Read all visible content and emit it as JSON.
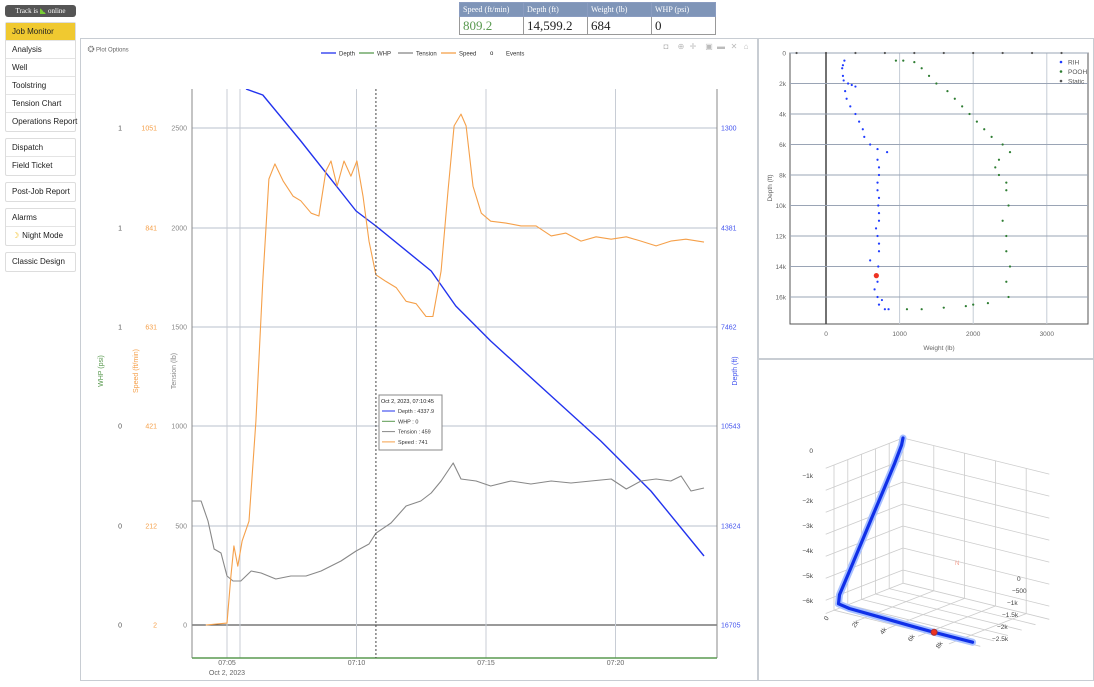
{
  "status": {
    "pre": "Track is",
    "post": "online",
    "icon": "signal-icon"
  },
  "sidebar": {
    "groups": [
      [
        {
          "label": "Job Monitor",
          "active": true
        },
        {
          "label": "Analysis"
        },
        {
          "label": "Well"
        },
        {
          "label": "Toolstring"
        },
        {
          "label": "Tension Chart"
        },
        {
          "label": "Operations Report"
        }
      ],
      [
        {
          "label": "Dispatch"
        },
        {
          "label": "Field Ticket"
        }
      ],
      [
        {
          "label": "Post-Job Report"
        }
      ],
      [
        {
          "label": "Alarms"
        },
        {
          "label": "Night Mode",
          "icon": "moon-icon"
        }
      ],
      [
        {
          "label": "Classic Design"
        }
      ]
    ]
  },
  "readout": {
    "headers": [
      "Speed (ft/min)",
      "Depth (ft)",
      "Weight (lb)",
      "WHP (psi)"
    ],
    "values": [
      "809.2",
      "14,599.2",
      "684",
      "0"
    ]
  },
  "main_chart": {
    "plot_options": "Plot Options",
    "toolbar": [
      "camera-icon",
      "zoom-icon",
      "pan-icon",
      "zoom-in-icon",
      "zoom-out-icon",
      "autoscale-icon",
      "home-icon"
    ],
    "tooltip": {
      "title": "Oct 2, 2023, 07:10:45",
      "rows": [
        {
          "label": "Depth : 4337.9",
          "color": "#2233ee"
        },
        {
          "label": "WHP : 0",
          "color": "#5a9a50"
        },
        {
          "label": "Tension : 459",
          "color": "#888888"
        },
        {
          "label": "Speed : 741",
          "color": "#f5a04a"
        }
      ]
    }
  },
  "colors": {
    "depth": "#2233ee",
    "whp": "#5a9a50",
    "tension": "#888888",
    "speed": "#f5a04a",
    "rih": "#1f3bff",
    "pooh": "#2e7d32",
    "static": "#555555",
    "current": "#ee3322",
    "accent": "#f0c930"
  },
  "chart_data": [
    {
      "type": "line",
      "legend": [
        {
          "name": "Depth",
          "color": "#2233ee"
        },
        {
          "name": "WHP",
          "color": "#5a9a50"
        },
        {
          "name": "Tension",
          "color": "#888888"
        },
        {
          "name": "Speed",
          "color": "#f5a04a"
        },
        {
          "name": "Events",
          "marker": "o"
        }
      ],
      "legend_position": "top-center",
      "x_ticks": [
        "07:05",
        "07:10",
        "07:15",
        "07:20"
      ],
      "x_date_label": "Oct 2, 2023",
      "x_range": [
        "07:03:39",
        "07:23:55"
      ],
      "hover_time": "07:10:45",
      "axes": {
        "whp": {
          "title": "WHP (psi)",
          "ticks": [
            "0",
            "0",
            "0",
            "1",
            "1",
            "1"
          ]
        },
        "speed": {
          "title": "Speed (ft/min)",
          "ticks": [
            "2",
            "212",
            "421",
            "631",
            "841",
            "1051"
          ]
        },
        "tension": {
          "title": "Tension (lb)",
          "ticks": [
            "0",
            "500",
            "1000",
            "1500",
            "2000",
            "2500"
          ]
        },
        "depth": {
          "title": "Depth (ft)",
          "ticks": [
            "16705",
            "13624",
            "10543",
            "7462",
            "4381",
            "1300"
          ],
          "reversed": true
        }
      },
      "series": [
        {
          "name": "Depth",
          "axis": "depth",
          "points": [
            [
              "07:05:44",
              91
            ],
            [
              "07:06:23",
              277
            ],
            [
              "07:07:51",
              1703
            ],
            [
              "07:09:59",
              3873
            ],
            [
              "07:10:45",
              4338
            ],
            [
              "07:12:53",
              5733
            ],
            [
              "07:13:50",
              6818
            ],
            [
              "07:15:11",
              7903
            ],
            [
              "07:17:31",
              9608
            ],
            [
              "07:19:26",
              11003
            ],
            [
              "07:21:22",
              12553
            ],
            [
              "07:23:25",
              14568
            ]
          ]
        },
        {
          "name": "WHP",
          "axis": "whp",
          "points": [
            [
              "07:03:39",
              0
            ],
            [
              "07:23:55",
              0
            ]
          ]
        },
        {
          "name": "Tension",
          "axis": "tension",
          "points": [
            [
              "07:03:39",
              620
            ],
            [
              "07:04:00",
              620
            ],
            [
              "07:04:16",
              520
            ],
            [
              "07:04:30",
              380
            ],
            [
              "07:04:46",
              360
            ],
            [
              "07:05:00",
              245
            ],
            [
              "07:05:14",
              220
            ],
            [
              "07:05:32",
              220
            ],
            [
              "07:05:56",
              270
            ],
            [
              "07:06:19",
              260
            ],
            [
              "07:06:53",
              230
            ],
            [
              "07:07:28",
              245
            ],
            [
              "07:08:03",
              245
            ],
            [
              "07:08:38",
              270
            ],
            [
              "07:09:24",
              320
            ],
            [
              "07:09:59",
              370
            ],
            [
              "07:10:29",
              405
            ],
            [
              "07:10:45",
              459
            ],
            [
              "07:11:20",
              510
            ],
            [
              "07:11:55",
              595
            ],
            [
              "07:12:29",
              620
            ],
            [
              "07:12:53",
              660
            ],
            [
              "07:13:16",
              720
            ],
            [
              "07:13:44",
              810
            ],
            [
              "07:14:02",
              730
            ],
            [
              "07:14:37",
              720
            ],
            [
              "07:15:11",
              695
            ],
            [
              "07:15:58",
              720
            ],
            [
              "07:16:44",
              705
            ],
            [
              "07:17:31",
              720
            ],
            [
              "07:18:17",
              710
            ],
            [
              "07:19:03",
              720
            ],
            [
              "07:19:50",
              730
            ],
            [
              "07:20:25",
              680
            ],
            [
              "07:20:59",
              720
            ],
            [
              "07:21:34",
              730
            ],
            [
              "07:22:08",
              720
            ],
            [
              "07:22:32",
              745
            ],
            [
              "07:22:55",
              670
            ],
            [
              "07:23:25",
              685
            ]
          ]
        },
        {
          "name": "Speed",
          "axis": "speed",
          "points": [
            [
              "07:04:11",
              2
            ],
            [
              "07:05:00",
              6
            ],
            [
              "07:05:09",
              105
            ],
            [
              "07:05:16",
              169
            ],
            [
              "07:05:25",
              126
            ],
            [
              "07:05:35",
              179
            ],
            [
              "07:05:51",
              221
            ],
            [
              "07:06:07",
              432
            ],
            [
              "07:06:23",
              728
            ],
            [
              "07:06:37",
              943
            ],
            [
              "07:06:51",
              975
            ],
            [
              "07:07:10",
              939
            ],
            [
              "07:07:33",
              907
            ],
            [
              "07:07:51",
              897
            ],
            [
              "07:08:15",
              871
            ],
            [
              "07:08:33",
              865
            ],
            [
              "07:08:49",
              960
            ],
            [
              "07:09:01",
              981
            ],
            [
              "07:09:15",
              928
            ],
            [
              "07:09:31",
              981
            ],
            [
              "07:09:47",
              949
            ],
            [
              "07:10:01",
              981
            ],
            [
              "07:10:15",
              907
            ],
            [
              "07:10:29",
              812
            ],
            [
              "07:10:45",
              741
            ],
            [
              "07:11:08",
              727
            ],
            [
              "07:11:32",
              714
            ],
            [
              "07:11:55",
              685
            ],
            [
              "07:12:18",
              680
            ],
            [
              "07:12:41",
              653
            ],
            [
              "07:12:57",
              653
            ],
            [
              "07:13:16",
              749
            ],
            [
              "07:13:32",
              918
            ],
            [
              "07:13:46",
              1055
            ],
            [
              "07:14:02",
              1080
            ],
            [
              "07:14:14",
              1055
            ],
            [
              "07:14:30",
              928
            ],
            [
              "07:14:49",
              871
            ],
            [
              "07:15:11",
              854
            ],
            [
              "07:15:46",
              850
            ],
            [
              "07:16:21",
              844
            ],
            [
              "07:16:56",
              844
            ],
            [
              "07:17:31",
              823
            ],
            [
              "07:18:05",
              829
            ],
            [
              "07:18:40",
              812
            ],
            [
              "07:19:15",
              821
            ],
            [
              "07:19:50",
              816
            ],
            [
              "07:20:25",
              821
            ],
            [
              "07:20:59",
              812
            ],
            [
              "07:21:34",
              802
            ],
            [
              "07:22:08",
              812
            ],
            [
              "07:22:43",
              816
            ],
            [
              "07:23:25",
              810
            ]
          ]
        }
      ]
    },
    {
      "type": "scatter",
      "xlabel": "Weight (lb)",
      "ylabel": "Depth (ft)",
      "xlim": [
        -500,
        3550
      ],
      "ylim": [
        17800,
        0
      ],
      "x_ticks": [
        "0",
        "1000",
        "2000",
        "3000"
      ],
      "y_ticks": [
        "0",
        "2k",
        "4k",
        "6k",
        "8k",
        "10k",
        "12k",
        "14k",
        "16k"
      ],
      "legend_position": "top-right",
      "current": {
        "weight": 684,
        "depth": 14599
      },
      "series": [
        {
          "name": "RIH",
          "color": "#1f3bff",
          "points": [
            [
              250,
              500
            ],
            [
              230,
              800
            ],
            [
              220,
              1000
            ],
            [
              230,
              1500
            ],
            [
              240,
              1800
            ],
            [
              300,
              2000
            ],
            [
              400,
              2200
            ],
            [
              350,
              2100
            ],
            [
              260,
              2500
            ],
            [
              280,
              3000
            ],
            [
              330,
              3500
            ],
            [
              400,
              4000
            ],
            [
              450,
              4500
            ],
            [
              500,
              5000
            ],
            [
              520,
              5500
            ],
            [
              600,
              6000
            ],
            [
              700,
              6300
            ],
            [
              830,
              6500
            ],
            [
              700,
              7000
            ],
            [
              720,
              7500
            ],
            [
              720,
              8000
            ],
            [
              700,
              8500
            ],
            [
              700,
              9000
            ],
            [
              720,
              9500
            ],
            [
              710,
              10000
            ],
            [
              720,
              10500
            ],
            [
              720,
              11000
            ],
            [
              680,
              11500
            ],
            [
              700,
              12000
            ],
            [
              720,
              12500
            ],
            [
              720,
              13000
            ],
            [
              600,
              13600
            ],
            [
              710,
              14000
            ],
            [
              700,
              15000
            ],
            [
              660,
              15500
            ],
            [
              700,
              16000
            ],
            [
              760,
              16200
            ],
            [
              720,
              16500
            ],
            [
              800,
              16800
            ],
            [
              850,
              16800
            ]
          ]
        },
        {
          "name": "POOH",
          "color": "#2e7d32",
          "points": [
            [
              950,
              500
            ],
            [
              1050,
              500
            ],
            [
              1200,
              600
            ],
            [
              1300,
              1000
            ],
            [
              1400,
              1500
            ],
            [
              1500,
              2000
            ],
            [
              1650,
              2500
            ],
            [
              1750,
              3000
            ],
            [
              1850,
              3500
            ],
            [
              1950,
              4000
            ],
            [
              2050,
              4500
            ],
            [
              2150,
              5000
            ],
            [
              2250,
              5500
            ],
            [
              2400,
              6000
            ],
            [
              2500,
              6500
            ],
            [
              2350,
              7000
            ],
            [
              2300,
              7500
            ],
            [
              2350,
              8000
            ],
            [
              2450,
              8500
            ],
            [
              2450,
              9000
            ],
            [
              2480,
              10000
            ],
            [
              2400,
              11000
            ],
            [
              2450,
              12000
            ],
            [
              2450,
              13000
            ],
            [
              2500,
              14000
            ],
            [
              2450,
              15000
            ],
            [
              2480,
              16000
            ],
            [
              2200,
              16400
            ],
            [
              2000,
              16500
            ],
            [
              1900,
              16600
            ],
            [
              1600,
              16700
            ],
            [
              1300,
              16800
            ],
            [
              1100,
              16800
            ]
          ]
        },
        {
          "name": "Static",
          "color": "#555555",
          "points": [
            [
              -400,
              0
            ],
            [
              0,
              0
            ],
            [
              400,
              0
            ],
            [
              800,
              0
            ],
            [
              1200,
              0
            ],
            [
              1600,
              0
            ],
            [
              2000,
              0
            ],
            [
              2400,
              0
            ],
            [
              2800,
              0
            ],
            [
              3200,
              0
            ]
          ]
        }
      ]
    },
    {
      "type": "line",
      "kind": "3d-trajectory",
      "z_ticks": [
        "0",
        "−1k",
        "−2k",
        "−3k",
        "−4k",
        "−5k",
        "−6k"
      ],
      "x_ticks": [
        "0",
        "2k",
        "4k",
        "6k",
        "8k"
      ],
      "y_ticks": [
        "0",
        "−500",
        "−1k",
        "−1.5k",
        "−2k",
        "−2.5k"
      ],
      "north_label": "N",
      "current_index": 12,
      "points": [
        [
          0,
          0,
          0
        ],
        [
          0,
          -50,
          -300
        ],
        [
          0,
          -300,
          -1000
        ],
        [
          0,
          -700,
          -2000
        ],
        [
          0,
          -1100,
          -3000
        ],
        [
          0,
          -1500,
          -4000
        ],
        [
          0,
          -1900,
          -5000
        ],
        [
          0,
          -2300,
          -6000
        ],
        [
          200,
          -2450,
          -6300
        ],
        [
          1000,
          -2500,
          -6350
        ],
        [
          3000,
          -2500,
          -6400
        ],
        [
          5000,
          -2500,
          -6450
        ],
        [
          6500,
          -2500,
          -6480
        ],
        [
          9000,
          -2500,
          -6500
        ]
      ]
    }
  ]
}
